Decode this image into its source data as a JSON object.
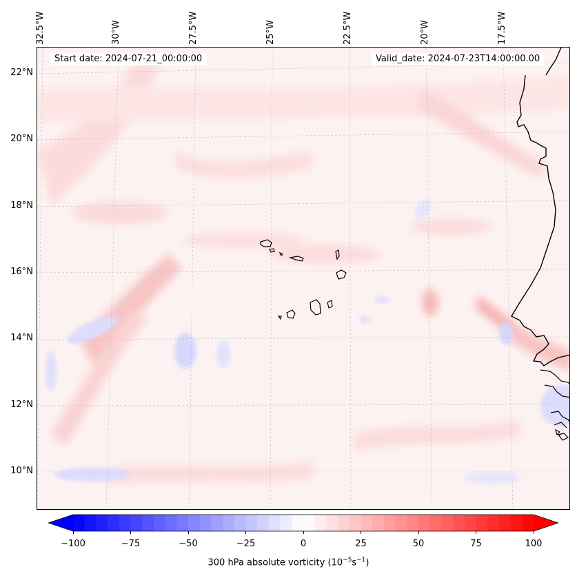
{
  "map": {
    "start_date": "Start date: 2024-07-21_00:00:00",
    "valid_date": "Valid_date: 2024-07-23T14:00:00.00",
    "lon_labels": [
      "32.5°W",
      "30°W",
      "27.5°W",
      "25°W",
      "22.5°W",
      "20°W",
      "17.5°W"
    ],
    "lat_labels": [
      "22°N",
      "20°N",
      "18°N",
      "16°N",
      "14°N",
      "12°N",
      "10°N"
    ],
    "field": "300 hPa absolute vorticity",
    "islands": "Cape Verde",
    "coastline": "West Africa (Senegal, Mauritania, Guinea-Bissau)"
  },
  "colorbar": {
    "label_main": "300 hPa absolute vorticity (10",
    "label_exp1": "−5",
    "label_mid": "s",
    "label_exp2": "−1",
    "label_end": ")",
    "ticks": [
      "−100",
      "−75",
      "−50",
      "−25",
      "0",
      "25",
      "50",
      "75",
      "100"
    ],
    "min": -100,
    "max": 100,
    "low_color": "#0000ff",
    "high_color": "#ff0000",
    "mid_color": "#ffffff"
  }
}
